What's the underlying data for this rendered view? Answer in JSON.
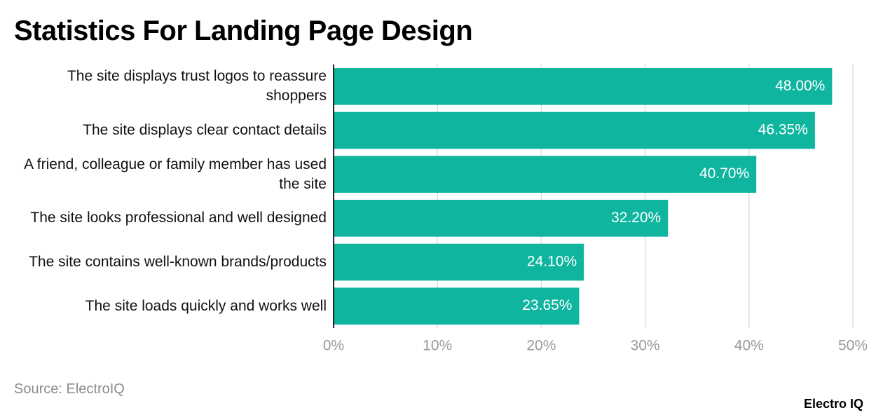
{
  "chart_data": {
    "type": "bar",
    "orientation": "horizontal",
    "title": "Statistics For Landing Page Design",
    "source": "Source: ElectroIQ",
    "brand": "Electro IQ",
    "categories": [
      "The site displays trust logos to reassure shoppers",
      "The site displays clear contact details",
      "A friend, colleague or family member has used the site",
      "The site looks professional and well designed",
      "The site contains well-known brands/products",
      "The site loads quickly and works well"
    ],
    "values": [
      48.0,
      46.35,
      40.7,
      32.2,
      24.1,
      23.65
    ],
    "value_labels": [
      "48.00%",
      "46.35%",
      "40.70%",
      "32.20%",
      "24.10%",
      "23.65%"
    ],
    "color": "#10b5a0",
    "xlim": [
      0,
      50
    ],
    "xticks": [
      {
        "value": 0,
        "label": "0%"
      },
      {
        "value": 10,
        "label": "10%"
      },
      {
        "value": 20,
        "label": "20%"
      },
      {
        "value": 30,
        "label": "30%"
      },
      {
        "value": 40,
        "label": "40%"
      },
      {
        "value": 50,
        "label": "50%"
      }
    ],
    "grid": true
  }
}
